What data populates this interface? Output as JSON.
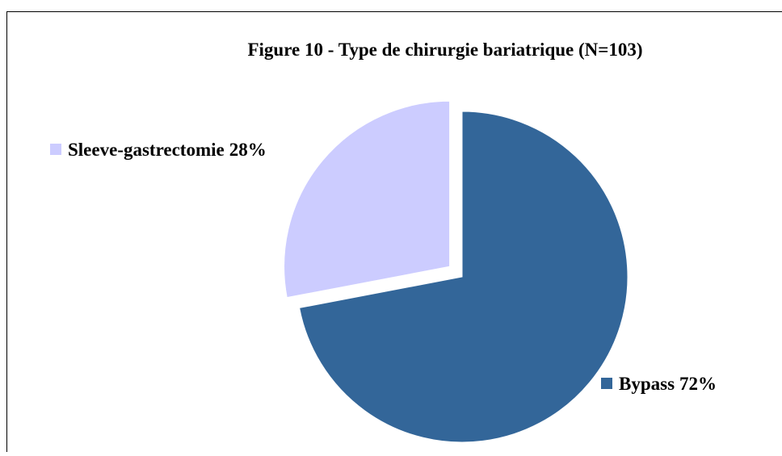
{
  "chart_data": {
    "type": "pie",
    "title": "Figure 10 - Type de chirurgie bariatrique (N=103)",
    "categories": [
      "Bypass",
      "Sleeve-gastrectomie"
    ],
    "values": [
      72,
      28
    ],
    "value_labels": [
      "72%",
      "28%"
    ],
    "colors": [
      "#336699",
      "#ccccff"
    ]
  }
}
